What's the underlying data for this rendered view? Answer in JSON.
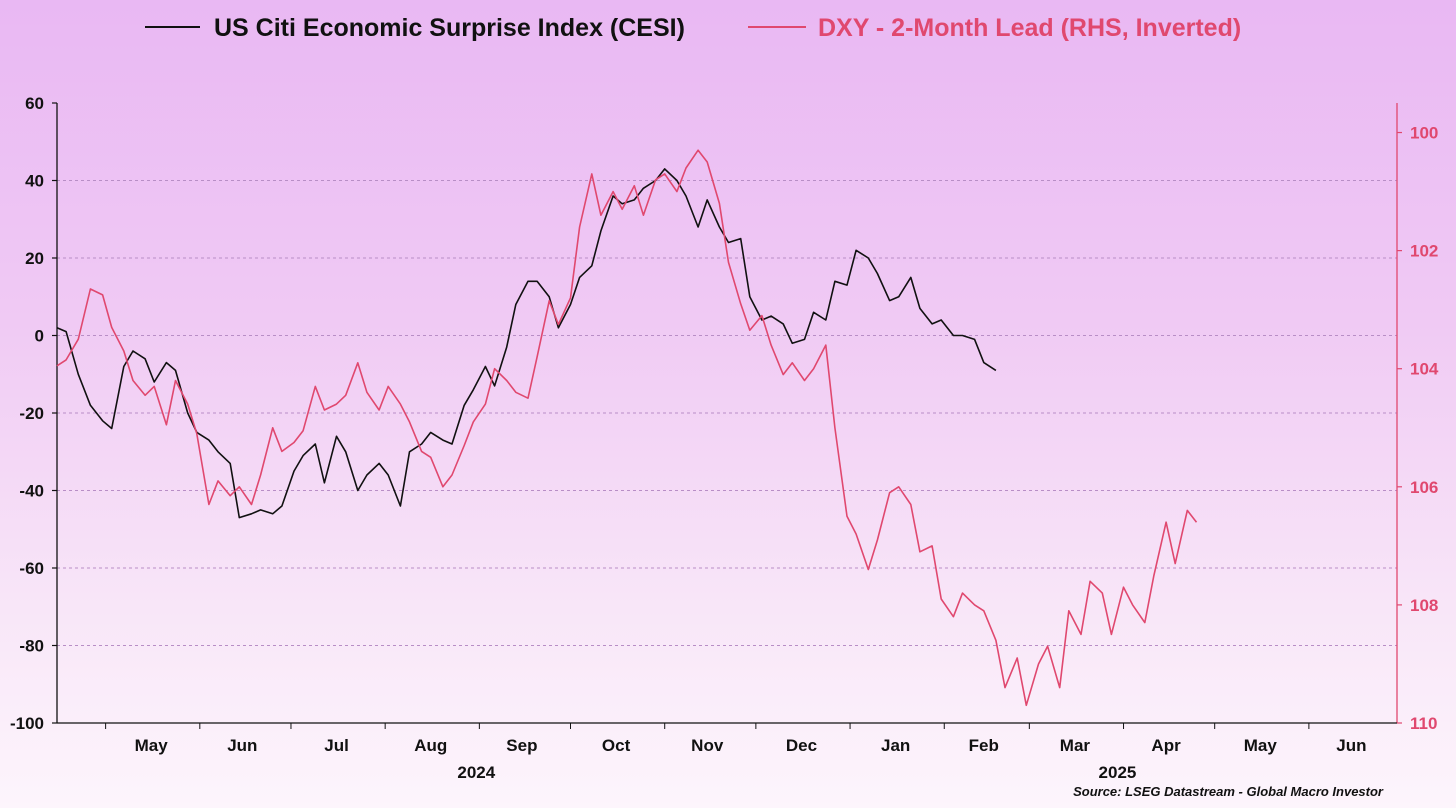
{
  "chart_data": {
    "type": "line",
    "series": [
      {
        "name": "US Citi Economic Surprise Index (CESI)",
        "axis": "left",
        "color": "#111111",
        "x": [
          "2024-04-15",
          "2024-04-18",
          "2024-04-22",
          "2024-04-26",
          "2024-04-30",
          "2024-05-03",
          "2024-05-07",
          "2024-05-10",
          "2024-05-14",
          "2024-05-17",
          "2024-05-21",
          "2024-05-24",
          "2024-05-28",
          "2024-05-31",
          "2024-06-04",
          "2024-06-07",
          "2024-06-11",
          "2024-06-14",
          "2024-06-18",
          "2024-06-21",
          "2024-06-25",
          "2024-06-28",
          "2024-07-02",
          "2024-07-05",
          "2024-07-09",
          "2024-07-12",
          "2024-07-16",
          "2024-07-19",
          "2024-07-23",
          "2024-07-26",
          "2024-07-30",
          "2024-08-02",
          "2024-08-06",
          "2024-08-09",
          "2024-08-13",
          "2024-08-16",
          "2024-08-20",
          "2024-08-23",
          "2024-08-27",
          "2024-08-30",
          "2024-09-03",
          "2024-09-06",
          "2024-09-10",
          "2024-09-13",
          "2024-09-17",
          "2024-09-20",
          "2024-09-24",
          "2024-09-27",
          "2024-10-01",
          "2024-10-04",
          "2024-10-08",
          "2024-10-11",
          "2024-10-15",
          "2024-10-18",
          "2024-10-22",
          "2024-10-25",
          "2024-10-29",
          "2024-11-01",
          "2024-11-05",
          "2024-11-08",
          "2024-11-12",
          "2024-11-15",
          "2024-11-19",
          "2024-11-22",
          "2024-11-26",
          "2024-11-29",
          "2024-12-03",
          "2024-12-06",
          "2024-12-10",
          "2024-12-13",
          "2024-12-17",
          "2024-12-20",
          "2024-12-24",
          "2024-12-27",
          "2024-12-31",
          "2025-01-03",
          "2025-01-07",
          "2025-01-10",
          "2025-01-14",
          "2025-01-17",
          "2025-01-21",
          "2025-01-24",
          "2025-01-28",
          "2025-01-31",
          "2025-02-04",
          "2025-02-07",
          "2025-02-11",
          "2025-02-14",
          "2025-02-18"
        ],
        "values": [
          2,
          1,
          -10,
          -18,
          -22,
          -24,
          -8,
          -4,
          -6,
          -12,
          -7,
          -9,
          -20,
          -25,
          -27,
          -30,
          -33,
          -47,
          -46,
          -45,
          -46,
          -44,
          -35,
          -31,
          -28,
          -38,
          -26,
          -30,
          -40,
          -36,
          -33,
          -36,
          -44,
          -30,
          -28,
          -25,
          -27,
          -28,
          -18,
          -14,
          -8,
          -13,
          -3,
          8,
          14,
          14,
          10,
          2,
          8,
          15,
          18,
          27,
          36,
          34,
          35,
          38,
          40,
          43,
          40,
          36,
          28,
          35,
          28,
          24,
          25,
          10,
          4,
          5,
          3,
          -2,
          -1,
          6,
          4,
          14,
          13,
          22,
          20,
          16,
          9,
          10,
          15,
          7,
          3,
          4,
          0,
          0,
          -1,
          -7,
          -9
        ]
      },
      {
        "name": "DXY - 2-Month Lead (RHS, Inverted)",
        "axis": "right",
        "color": "#e0486f",
        "x": [
          "2024-04-15",
          "2024-04-18",
          "2024-04-22",
          "2024-04-26",
          "2024-04-30",
          "2024-05-03",
          "2024-05-07",
          "2024-05-10",
          "2024-05-14",
          "2024-05-17",
          "2024-05-21",
          "2024-05-24",
          "2024-05-28",
          "2024-05-31",
          "2024-06-04",
          "2024-06-07",
          "2024-06-11",
          "2024-06-14",
          "2024-06-18",
          "2024-06-21",
          "2024-06-25",
          "2024-06-28",
          "2024-07-02",
          "2024-07-05",
          "2024-07-09",
          "2024-07-12",
          "2024-07-16",
          "2024-07-19",
          "2024-07-23",
          "2024-07-26",
          "2024-07-30",
          "2024-08-02",
          "2024-08-06",
          "2024-08-09",
          "2024-08-13",
          "2024-08-16",
          "2024-08-20",
          "2024-08-23",
          "2024-08-27",
          "2024-08-30",
          "2024-09-03",
          "2024-09-06",
          "2024-09-10",
          "2024-09-13",
          "2024-09-17",
          "2024-09-20",
          "2024-09-24",
          "2024-09-27",
          "2024-10-01",
          "2024-10-04",
          "2024-10-08",
          "2024-10-11",
          "2024-10-15",
          "2024-10-18",
          "2024-10-22",
          "2024-10-25",
          "2024-10-29",
          "2024-11-01",
          "2024-11-05",
          "2024-11-08",
          "2024-11-12",
          "2024-11-15",
          "2024-11-19",
          "2024-11-22",
          "2024-11-26",
          "2024-11-29",
          "2024-12-03",
          "2024-12-06",
          "2024-12-10",
          "2024-12-13",
          "2024-12-17",
          "2024-12-20",
          "2024-12-24",
          "2024-12-27",
          "2024-12-31",
          "2025-01-03",
          "2025-01-07",
          "2025-01-10",
          "2025-01-14",
          "2025-01-17",
          "2025-01-21",
          "2025-01-24",
          "2025-01-28",
          "2025-01-31",
          "2025-02-04",
          "2025-02-07",
          "2025-02-11",
          "2025-02-14",
          "2025-02-18",
          "2025-02-21",
          "2025-02-25",
          "2025-02-28",
          "2025-03-04",
          "2025-03-07",
          "2025-03-11",
          "2025-03-14",
          "2025-03-18",
          "2025-03-21",
          "2025-03-25",
          "2025-03-28",
          "2025-04-01",
          "2025-04-04",
          "2025-04-08",
          "2025-04-11",
          "2025-04-15",
          "2025-04-18",
          "2025-04-22",
          "2025-04-25"
        ],
        "values": [
          103.95,
          103.85,
          103.5,
          102.65,
          102.75,
          103.3,
          103.7,
          104.2,
          104.45,
          104.3,
          104.95,
          104.2,
          104.6,
          105.1,
          106.3,
          105.9,
          106.15,
          106.0,
          106.3,
          105.8,
          105.0,
          105.4,
          105.25,
          105.05,
          104.3,
          104.7,
          104.6,
          104.45,
          103.9,
          104.4,
          104.7,
          104.3,
          104.6,
          104.9,
          105.4,
          105.5,
          106.0,
          105.8,
          105.3,
          104.9,
          104.6,
          104.0,
          104.2,
          104.4,
          104.5,
          103.8,
          102.85,
          103.25,
          102.8,
          101.6,
          100.7,
          101.4,
          101.0,
          101.3,
          100.9,
          101.4,
          100.8,
          100.7,
          101.0,
          100.6,
          100.3,
          100.5,
          101.2,
          102.2,
          102.9,
          103.35,
          103.1,
          103.6,
          104.1,
          103.9,
          104.2,
          104.0,
          103.6,
          105.0,
          106.5,
          106.8,
          107.4,
          106.9,
          106.1,
          106.0,
          106.3,
          107.1,
          107.0,
          107.9,
          108.2,
          107.8,
          108.0,
          108.1,
          108.6,
          109.4,
          108.9,
          109.7,
          109.0,
          108.7,
          109.4,
          108.1,
          108.5,
          107.6,
          107.8,
          108.5,
          107.7,
          108.0,
          108.3,
          107.5,
          106.6,
          107.3,
          106.4,
          106.6
        ]
      }
    ],
    "title": "",
    "xlabel": "",
    "ylabel": "",
    "ylim": [
      -100,
      60
    ],
    "y2lim": [
      110,
      99.5
    ],
    "y2_inverted": true,
    "yticks": [
      60,
      40,
      20,
      0,
      -20,
      -40,
      -60,
      -80,
      -100
    ],
    "y2ticks": [
      100,
      102,
      104,
      106,
      108,
      110
    ],
    "xlim": [
      "2024-04-15",
      "2025-06-30"
    ],
    "x_month_labels": [
      {
        "label": "May",
        "date": "2024-05-16"
      },
      {
        "label": "Jun",
        "date": "2024-06-15"
      },
      {
        "label": "Jul",
        "date": "2024-07-16"
      },
      {
        "label": "Aug",
        "date": "2024-08-16"
      },
      {
        "label": "Sep",
        "date": "2024-09-15"
      },
      {
        "label": "Oct",
        "date": "2024-10-16"
      },
      {
        "label": "Nov",
        "date": "2024-11-15"
      },
      {
        "label": "Dec",
        "date": "2024-12-16"
      },
      {
        "label": "Jan",
        "date": "2025-01-16"
      },
      {
        "label": "Feb",
        "date": "2025-02-14"
      },
      {
        "label": "Mar",
        "date": "2025-03-16"
      },
      {
        "label": "Apr",
        "date": "2025-04-15"
      },
      {
        "label": "May",
        "date": "2025-05-16"
      },
      {
        "label": "Jun",
        "date": "2025-06-15"
      }
    ],
    "year_labels": [
      {
        "label": "2024",
        "date": "2024-08-31"
      },
      {
        "label": "2025",
        "date": "2025-03-30"
      }
    ],
    "grid": true,
    "legend_position": "top",
    "source": "Source: LSEG Datastream - Global Macro Investor"
  }
}
